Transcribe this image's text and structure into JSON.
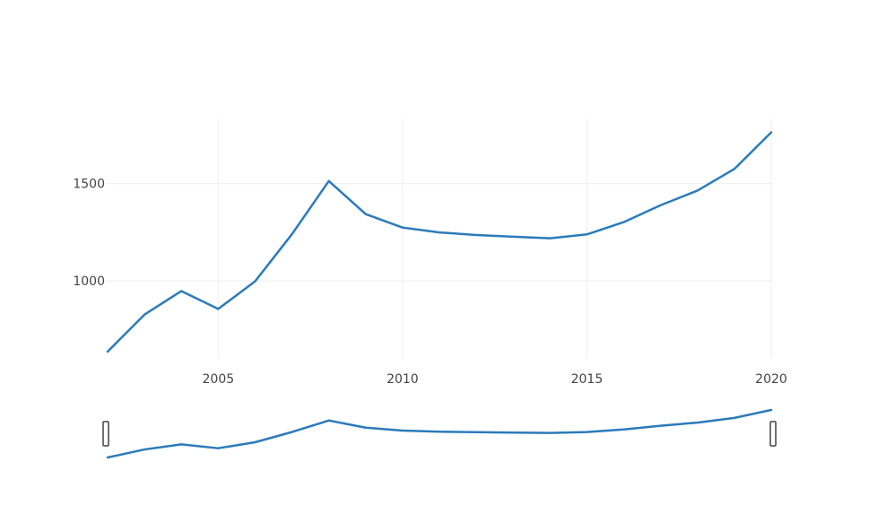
{
  "chart_data": {
    "type": "line",
    "title": "",
    "xlabel": "",
    "ylabel": "",
    "x": [
      2002,
      2003,
      2004,
      2005,
      2006,
      2007,
      2008,
      2009,
      2010,
      2011,
      2012,
      2013,
      2014,
      2015,
      2016,
      2017,
      2018,
      2019,
      2020
    ],
    "series": [
      {
        "values": [
          637,
          827,
          948,
          856,
          998,
          1240,
          1513,
          1343,
          1274,
          1249,
          1236,
          1227,
          1219,
          1239,
          1302,
          1389,
          1464,
          1575,
          1763
        ],
        "color": "#2b7bba"
      }
    ],
    "xlim": [
      2002,
      2020
    ],
    "ylim": [
      600,
      1830
    ],
    "x_ticks": [
      "2005",
      "2010",
      "2015",
      "2020"
    ],
    "y_ticks": [
      "1000",
      "1500"
    ],
    "grid": true,
    "range_slider": true
  }
}
